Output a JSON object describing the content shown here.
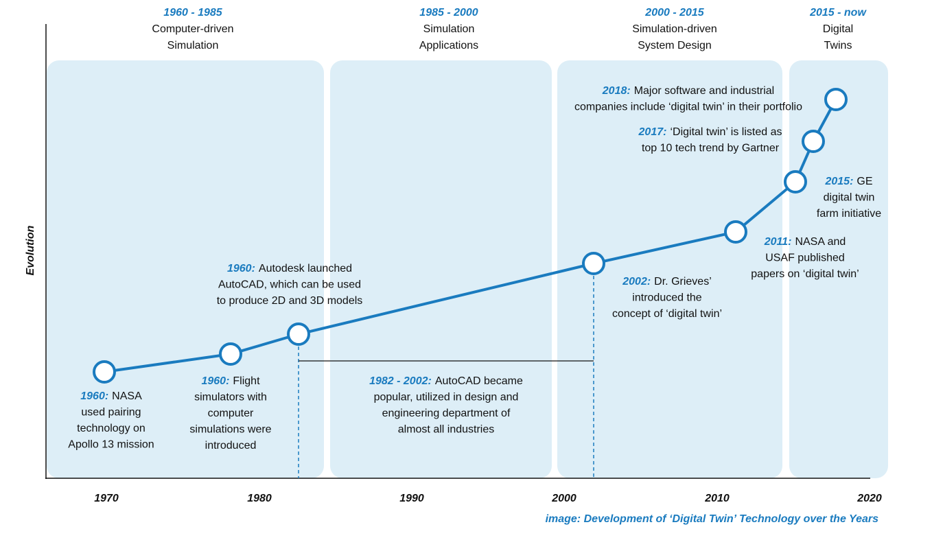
{
  "eras": [
    {
      "years": "1960 - 1985",
      "lines": [
        "Computer-driven",
        "Simulation"
      ]
    },
    {
      "years": "1985 - 2000",
      "lines": [
        "Simulation",
        "Applications"
      ]
    },
    {
      "years": "2000 - 2015",
      "lines": [
        "Simulation-driven",
        "System Design"
      ]
    },
    {
      "years": "2015 - now",
      "lines": [
        "Digital",
        "Twins"
      ]
    }
  ],
  "events": [
    {
      "date": "1960:",
      "lines": [
        "NASA",
        "used pairing",
        "technology on",
        "Apollo 13 mission"
      ]
    },
    {
      "date": "1960:",
      "lines": [
        "Flight",
        "simulators with",
        "computer",
        "simulations were",
        "introduced"
      ]
    },
    {
      "date": "1960:",
      "lines": [
        "Autodesk launched",
        "AutoCAD, which can be used",
        "to produce 2D and 3D models"
      ]
    },
    {
      "date": "1982 - 2002:",
      "lines": [
        "AutoCAD became",
        "popular, utilized in design and",
        "engineering department of",
        "almost all industries"
      ]
    },
    {
      "date": "2002:",
      "lines": [
        "Dr. Grieves’",
        "introduced the",
        "concept of ‘digital twin’"
      ]
    },
    {
      "date": "2011:",
      "lines": [
        "NASA and",
        "USAF published",
        "papers on ‘digital twin’"
      ]
    },
    {
      "date": "2015:",
      "lines": [
        "GE",
        "digital twin",
        "farm initiative"
      ]
    },
    {
      "date": "2017:",
      "lines": [
        "‘Digital twin’ is listed as",
        "top 10 tech trend by Gartner"
      ]
    },
    {
      "date": "2018:",
      "lines": [
        "Major software and industrial",
        "companies include ‘digital twin’ in their portfolio"
      ]
    }
  ],
  "x_axis_labels": [
    "1970",
    "1980",
    "1990",
    "2000",
    "2010",
    "2020"
  ],
  "y_axis_label": "Evolution",
  "caption": "image: Development of ‘Digital Twin’ Technology over the Years"
}
